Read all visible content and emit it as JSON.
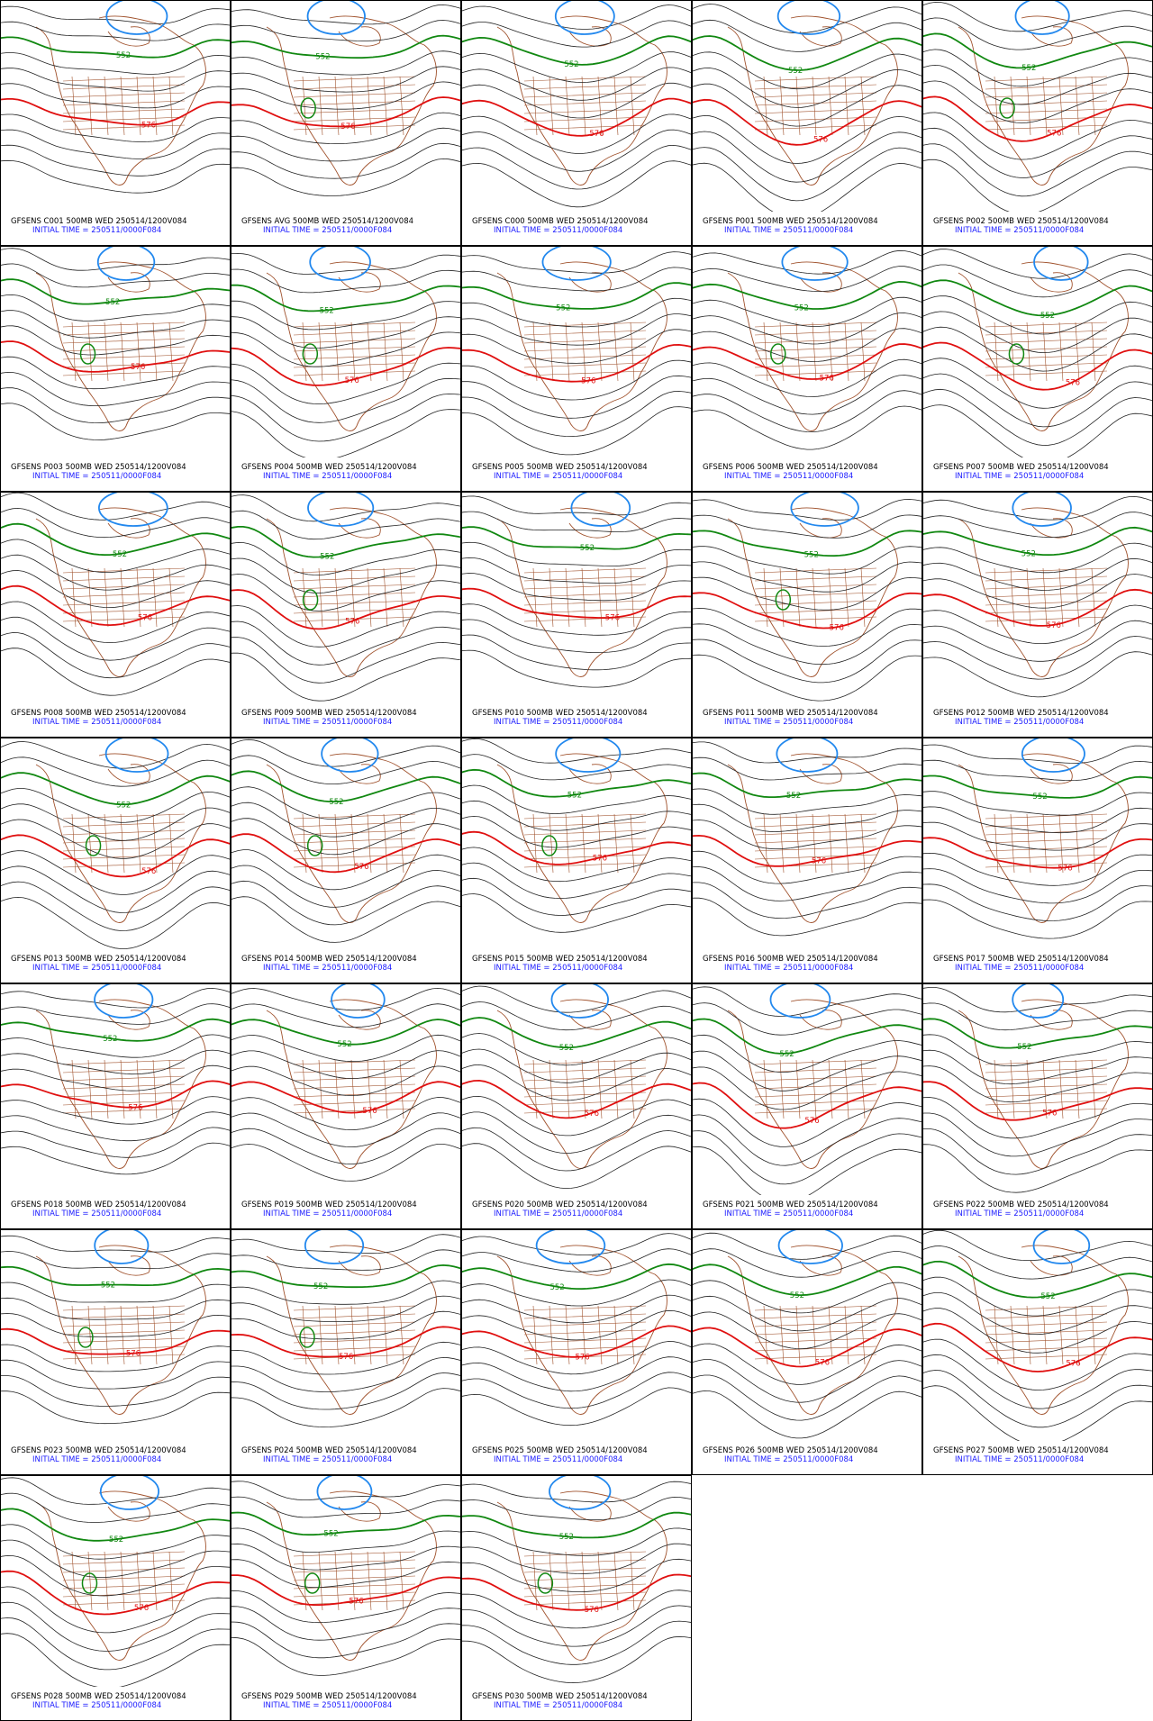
{
  "panels": [
    {
      "caption": "GFSENS C001 500MB WED 250514/1200V084"
    },
    {
      "caption": "GFSENS AVG 500MB WED 250514/1200V084"
    },
    {
      "caption": "GFSENS C000 500MB WED 250514/1200V084"
    },
    {
      "caption": "GFSENS P001 500MB WED 250514/1200V084"
    },
    {
      "caption": "GFSENS P002 500MB WED 250514/1200V084"
    },
    {
      "caption": "GFSENS P003 500MB WED 250514/1200V084"
    },
    {
      "caption": "GFSENS P004 500MB WED 250514/1200V084"
    },
    {
      "caption": "GFSENS P005 500MB WED 250514/1200V084"
    },
    {
      "caption": "GFSENS P006 500MB WED 250514/1200V084"
    },
    {
      "caption": "GFSENS P007 500MB WED 250514/1200V084"
    },
    {
      "caption": "GFSENS P008 500MB WED 250514/1200V084"
    },
    {
      "caption": "GFSENS P009 500MB WED 250514/1200V084"
    },
    {
      "caption": "GFSENS P010 500MB WED 250514/1200V084"
    },
    {
      "caption": "GFSENS P011 500MB WED 250514/1200V084"
    },
    {
      "caption": "GFSENS P012 500MB WED 250514/1200V084"
    },
    {
      "caption": "GFSENS P013 500MB WED 250514/1200V084"
    },
    {
      "caption": "GFSENS P014 500MB WED 250514/1200V084"
    },
    {
      "caption": "GFSENS P015 500MB WED 250514/1200V084"
    },
    {
      "caption": "GFSENS P016 500MB WED 250514/1200V084"
    },
    {
      "caption": "GFSENS P017 500MB WED 250514/1200V084"
    },
    {
      "caption": "GFSENS P018 500MB WED 250514/1200V084"
    },
    {
      "caption": "GFSENS P019 500MB WED 250514/1200V084"
    },
    {
      "caption": "GFSENS P020 500MB WED 250514/1200V084"
    },
    {
      "caption": "GFSENS P021 500MB WED 250514/1200V084"
    },
    {
      "caption": "GFSENS P022 500MB WED 250514/1200V084"
    },
    {
      "caption": "GFSENS P023 500MB WED 250514/1200V084"
    },
    {
      "caption": "GFSENS P024 500MB WED 250514/1200V084"
    },
    {
      "caption": "GFSENS P025 500MB WED 250514/1200V084"
    },
    {
      "caption": "GFSENS P026 500MB WED 250514/1200V084"
    },
    {
      "caption": "GFSENS P027 500MB WED 250514/1200V084"
    },
    {
      "caption": "GFSENS P028 500MB WED 250514/1200V084"
    },
    {
      "caption": "GFSENS P029 500MB WED 250514/1200V084"
    },
    {
      "caption": "GFSENS P030 500MB WED 250514/1200V084"
    }
  ],
  "initial_time": "INITIAL TIME = 250511/0000F084",
  "contour_labels": {
    "green": "552",
    "red": "576"
  }
}
